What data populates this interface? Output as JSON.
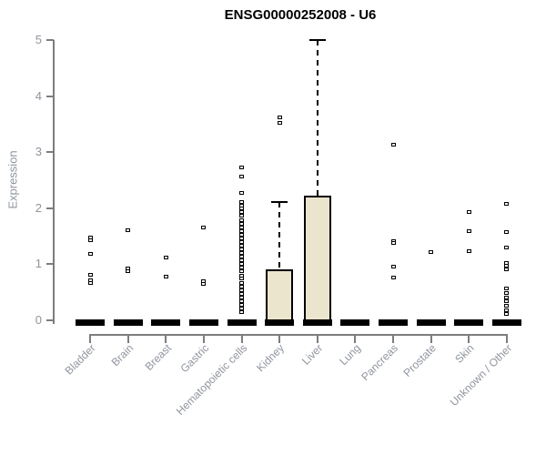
{
  "colors": {
    "box_fill": "#ebe5cd",
    "box_border": "#000000",
    "axis": "#7d7d7d",
    "tick_label": "#8f949e",
    "title": "#000000"
  },
  "chart_data": {
    "type": "box",
    "title": "ENSG00000252008 - U6",
    "xlabel": "",
    "ylabel": "Expression",
    "ylim": [
      0,
      5
    ],
    "yticks": [
      0,
      1,
      2,
      3,
      4,
      5
    ],
    "grid": false,
    "legend": "none",
    "categories": [
      "Bladder",
      "Brain",
      "Breast",
      "Gastric",
      "Hematopoietic cells",
      "Kidney",
      "Liver",
      "Lung",
      "Pancreas",
      "Prostate",
      "Skin",
      "Unknown / Other"
    ],
    "series": [
      {
        "label": "Bladder",
        "q1": 0,
        "median": 0,
        "q3": 0,
        "whisker_low": 0,
        "whisker_high": 0,
        "outliers": [
          1.47,
          1.43,
          1.19,
          0.81,
          0.71,
          0.66
        ]
      },
      {
        "label": "Brain",
        "q1": 0,
        "median": 0,
        "q3": 0,
        "whisker_low": 0,
        "whisker_high": 0,
        "outliers": [
          1.61,
          0.93,
          0.87
        ]
      },
      {
        "label": "Breast",
        "q1": 0,
        "median": 0,
        "q3": 0,
        "whisker_low": 0,
        "whisker_high": 0,
        "outliers": [
          1.12,
          0.78
        ]
      },
      {
        "label": "Gastric",
        "q1": 0,
        "median": 0,
        "q3": 0,
        "whisker_low": 0,
        "whisker_high": 0,
        "outliers": [
          1.66,
          0.69,
          0.65
        ]
      },
      {
        "label": "Hematopoietic cells",
        "q1": 0,
        "median": 0,
        "q3": 0,
        "whisker_low": 0,
        "whisker_high": 0,
        "outliers": [
          2.72,
          2.57,
          2.28,
          2.11,
          2.05,
          2.0,
          1.93,
          1.86,
          1.79,
          1.72,
          1.65,
          1.59,
          1.52,
          1.46,
          1.4,
          1.33,
          1.26,
          1.2,
          1.13,
          1.07,
          1.0,
          0.94,
          0.87,
          0.8,
          0.74,
          0.67,
          0.6,
          0.53,
          0.47,
          0.41,
          0.34,
          0.28,
          0.21,
          0.15
        ]
      },
      {
        "label": "Kidney",
        "q1": 0,
        "median": 0,
        "q3": 0.91,
        "whisker_low": 0,
        "whisker_high": 2.11,
        "outliers": [
          3.62,
          3.53
        ]
      },
      {
        "label": "Liver",
        "q1": 0,
        "median": 0,
        "q3": 2.23,
        "whisker_low": 0,
        "whisker_high": 5.0,
        "outliers": []
      },
      {
        "label": "Lung",
        "q1": 0,
        "median": 0,
        "q3": 0,
        "whisker_low": 0,
        "whisker_high": 0,
        "outliers": []
      },
      {
        "label": "Pancreas",
        "q1": 0,
        "median": 0,
        "q3": 0,
        "whisker_low": 0,
        "whisker_high": 0,
        "outliers": [
          3.14,
          1.42,
          1.38,
          0.96,
          0.76
        ]
      },
      {
        "label": "Prostate",
        "q1": 0,
        "median": 0,
        "q3": 0,
        "whisker_low": 0,
        "whisker_high": 0,
        "outliers": [
          1.21
        ]
      },
      {
        "label": "Skin",
        "q1": 0,
        "median": 0,
        "q3": 0,
        "whisker_low": 0,
        "whisker_high": 0,
        "outliers": [
          1.93,
          1.59,
          1.24
        ]
      },
      {
        "label": "Unknown / Other",
        "q1": 0,
        "median": 0,
        "q3": 0,
        "whisker_low": 0,
        "whisker_high": 0,
        "outliers": [
          2.07,
          1.58,
          1.3,
          1.03,
          0.97,
          0.91,
          0.57,
          0.49,
          0.41,
          0.34,
          0.26,
          0.18,
          0.12
        ]
      }
    ]
  }
}
